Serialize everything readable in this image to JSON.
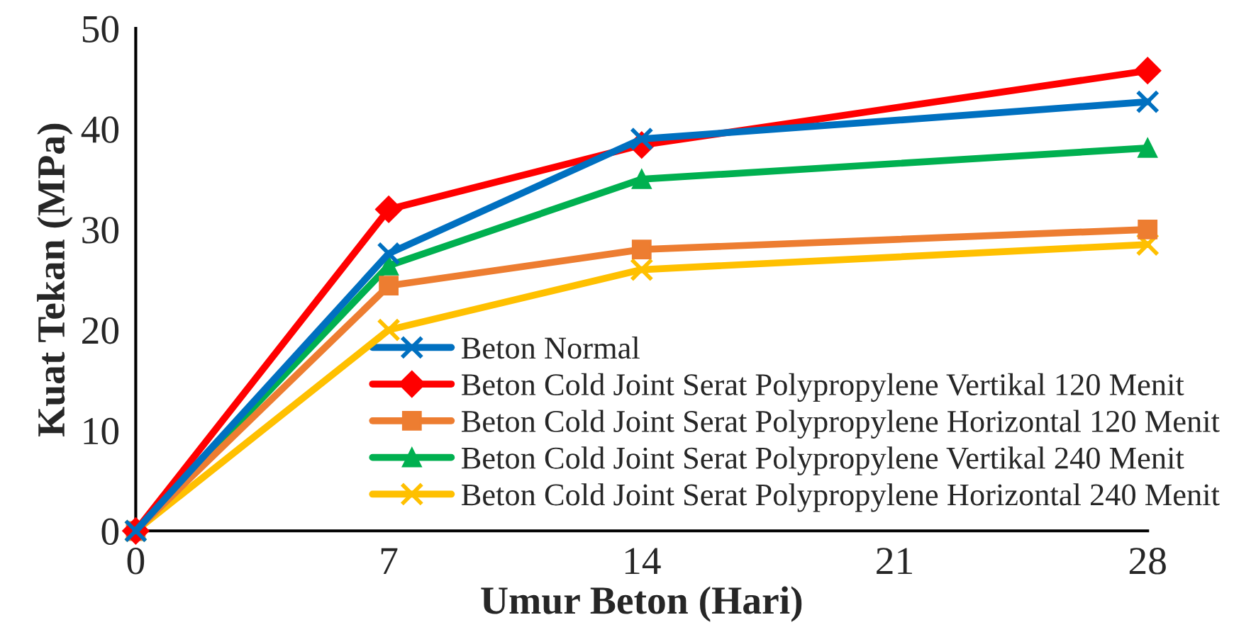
{
  "chart_data": {
    "type": "line",
    "xlabel": "Umur Beton (Hari)",
    "ylabel": "Kuat Tekan (MPa)",
    "x": [
      0,
      7,
      14,
      28
    ],
    "xlim": [
      0,
      28
    ],
    "xticks": [
      0,
      7,
      14,
      21,
      28
    ],
    "ylim": [
      0,
      50
    ],
    "yticks": [
      0,
      10,
      20,
      30,
      40,
      50
    ],
    "grid": false,
    "legend": "bottom right",
    "series": [
      {
        "name": "Beton Normal",
        "color": "#0070c0",
        "marker": "cross",
        "values": [
          0,
          27.6,
          39,
          42.7
        ]
      },
      {
        "name": "Beton Cold Joint Serat Polypropylene Vertikal 120 Menit",
        "color": "#ff0000",
        "marker": "diamond",
        "values": [
          0,
          32,
          38.4,
          45.8
        ]
      },
      {
        "name": "Beton Cold Joint Serat Polypropylene Horizontal 120 Menit",
        "color": "#ed7d31",
        "marker": "square",
        "values": [
          0,
          24.4,
          28,
          30
        ]
      },
      {
        "name": "Beton Cold Joint Serat Polypropylene Vertikal 240 Menit",
        "color": "#00b050",
        "marker": "triangle",
        "values": [
          0,
          26.4,
          35,
          38.1
        ]
      },
      {
        "name": "Beton Cold Joint Serat Polypropylene Horizontal 240 Menit",
        "color": "#ffc000",
        "marker": "cross",
        "values": [
          0,
          20,
          26,
          28.5
        ]
      }
    ]
  }
}
